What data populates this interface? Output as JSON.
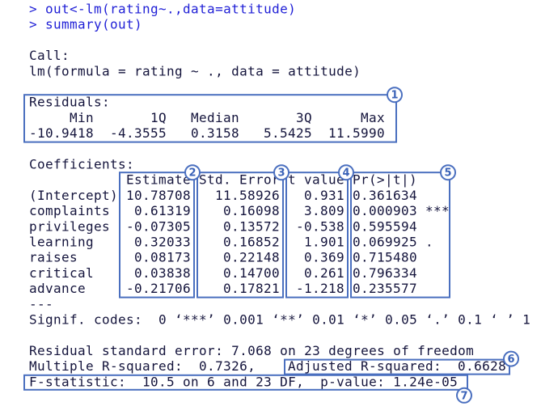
{
  "console": {
    "commands": [
      "> out<-lm(rating~.,data=attitude)",
      "> summary(out)"
    ],
    "call": {
      "label": "Call:",
      "formula": "lm(formula = rating ~ ., data = attitude)"
    },
    "residuals": {
      "label": "Residuals:",
      "headers": [
        "Min",
        "1Q",
        "Median",
        "3Q",
        "Max"
      ],
      "values": [
        "-10.9418",
        "-4.3555",
        "0.3158",
        "5.5425",
        "11.5990"
      ]
    },
    "coefficients": {
      "label": "Coefficients:",
      "headers": [
        "Estimate",
        "Std. Error",
        "t value",
        "Pr(>|t|)"
      ],
      "rows": [
        {
          "name": "(Intercept)",
          "cells": [
            "10.78708",
            "11.58926",
            "0.931",
            "0.361634"
          ]
        },
        {
          "name": "complaints",
          "cells": [
            "0.61319",
            "0.16098",
            "3.809",
            "0.000903"
          ],
          "signif": "***"
        },
        {
          "name": "privileges",
          "cells": [
            "-0.07305",
            "0.13572",
            "-0.538",
            "0.595594"
          ]
        },
        {
          "name": "learning",
          "cells": [
            "0.32033",
            "0.16852",
            "1.901",
            "0.069925"
          ],
          "signif": "."
        },
        {
          "name": "raises",
          "cells": [
            "0.08173",
            "0.22148",
            "0.369",
            "0.715480"
          ]
        },
        {
          "name": "critical",
          "cells": [
            "0.03838",
            "0.14700",
            "0.261",
            "0.796334"
          ]
        },
        {
          "name": "advance",
          "cells": [
            "-0.21706",
            "0.17821",
            "-1.218",
            "0.235577"
          ]
        }
      ]
    },
    "separator": "---",
    "signif_codes": "Signif. codes:  0 ‘***’ 0.001 ‘**’ 0.01 ‘*’ 0.05 ‘.’ 0.1 ‘ ’ 1",
    "residual_se": "Residual standard error: 7.068 on 23 degrees of freedom",
    "multiple_r2": "Multiple R-squared:  0.7326,",
    "adjusted_r2": "Adjusted R-squared:  0.6628",
    "f_statistic": "F-statistic:  10.5 on 6 and 23 DF,  p-value: 1.24e-05"
  },
  "annotations": [
    "1",
    "2",
    "3",
    "4",
    "5",
    "6",
    "7"
  ]
}
